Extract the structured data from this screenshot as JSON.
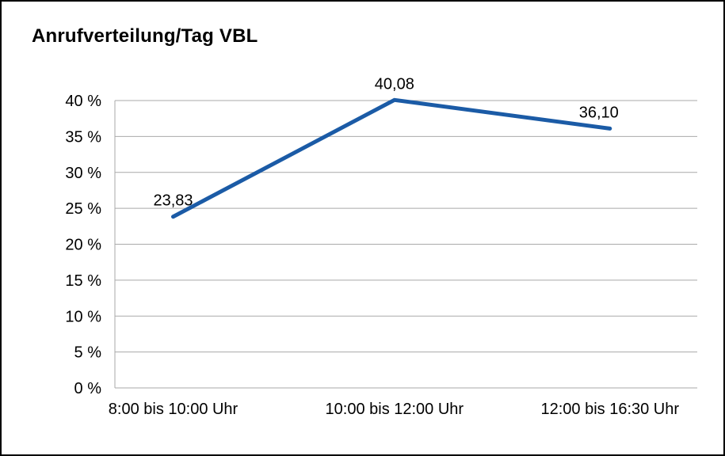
{
  "title": "Anrufverteilung/Tag VBL",
  "chart_data": {
    "type": "line",
    "title": "Anrufverteilung/Tag VBL",
    "categories": [
      "8:00 bis 10:00 Uhr",
      "10:00 bis 12:00 Uhr",
      "12:00 bis 16:30 Uhr"
    ],
    "values": [
      23.83,
      40.08,
      36.1
    ],
    "value_labels": [
      "23,83",
      "40,08",
      "36,10"
    ],
    "xlabel": "",
    "ylabel": "",
    "ylim": [
      0,
      40
    ],
    "ytick_step": 5,
    "ytick_labels": [
      "0 %",
      "5 %",
      "10 %",
      "15 %",
      "20 %",
      "25 %",
      "30 %",
      "35 %",
      "40 %"
    ],
    "grid": true,
    "legend": "none"
  },
  "colors": {
    "line": "#1b5ba6",
    "grid": "#a9a9a9",
    "axis": "#a9a9a9",
    "text": "#000000",
    "border": "#000000",
    "background": "#ffffff"
  }
}
